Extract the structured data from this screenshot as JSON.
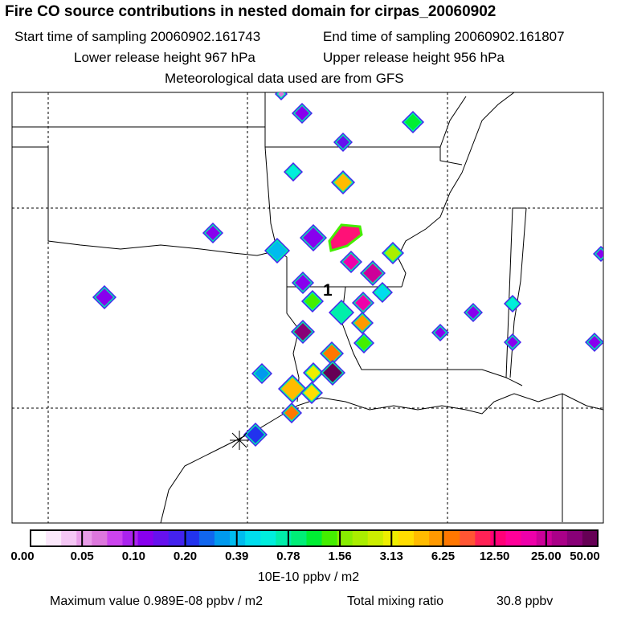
{
  "header": {
    "title": "Fire CO source contributions in nested domain for cirpas_20060902",
    "start_label": "Start time of sampling 20060902.161743",
    "end_label": "End time of sampling 20060902.161807",
    "lower_label": "Lower release height  967 hPa",
    "upper_label": "Upper release height  956 hPa",
    "met_label": "Meteorological data used are from GFS"
  },
  "map": {
    "receptor_label": "1",
    "fire_sources": [
      {
        "value": 0.1
      },
      {
        "value": 1.0
      },
      {
        "value": 0.15
      },
      {
        "value": 0.6
      },
      {
        "value": 5.0
      },
      {
        "value": 0.12
      },
      {
        "value": 0.12
      },
      {
        "value": 0.4
      },
      {
        "value": 20.0
      },
      {
        "value": 2.0
      },
      {
        "value": 0.12
      },
      {
        "value": 25.0
      },
      {
        "value": 0.5
      },
      {
        "value": 1.5
      },
      {
        "value": 0.7
      },
      {
        "value": 20.0
      },
      {
        "value": 6.0
      },
      {
        "value": 40.0
      },
      {
        "value": 8.0
      },
      {
        "value": 1.5
      },
      {
        "value": 5.0
      },
      {
        "value": 0.3
      },
      {
        "value": 3.0
      },
      {
        "value": 50.0
      },
      {
        "value": 4.0
      },
      {
        "value": 0.12
      },
      {
        "value": 8.0
      },
      {
        "value": 0.2
      },
      {
        "value": 0.6
      },
      {
        "value": 0.12
      },
      {
        "value": 0.1
      },
      {
        "value": 0.1
      },
      {
        "value": 0.1
      },
      {
        "value": 0.1
      },
      {
        "value": 0.06
      }
    ]
  },
  "colorbar": {
    "tick_labels": [
      "0.00",
      "0.05",
      "0.10",
      "0.20",
      "0.39",
      "0.78",
      "1.56",
      "3.13",
      "6.25",
      "12.50",
      "25.00",
      "50.00"
    ],
    "colors": [
      "#ffffff",
      "#fbe8fb",
      "#f4c6f4",
      "#e99ce9",
      "#dd77dd",
      "#cc44ee",
      "#aa22ee",
      "#8800ee",
      "#6611ee",
      "#4422ee",
      "#2233ee",
      "#1166ee",
      "#0099ee",
      "#00bbee",
      "#00ddee",
      "#00eedd",
      "#00eeaa",
      "#00ee77",
      "#00ee33",
      "#44ee00",
      "#88ee00",
      "#aaee00",
      "#ccee00",
      "#eeee00",
      "#ffdd00",
      "#ffbb00",
      "#ff9900",
      "#ff7700",
      "#ff5533",
      "#ff2255",
      "#ff0077",
      "#ff0099",
      "#ee00aa",
      "#cc0099",
      "#aa0088",
      "#880077",
      "#660055"
    ],
    "units": "10E-10 ppbv / m2"
  },
  "footer": {
    "max_label": "Maximum value  0.989E-08 ppbv / m2",
    "total_label": "Total mixing ratio",
    "total_value": "30.8 ppbv"
  }
}
